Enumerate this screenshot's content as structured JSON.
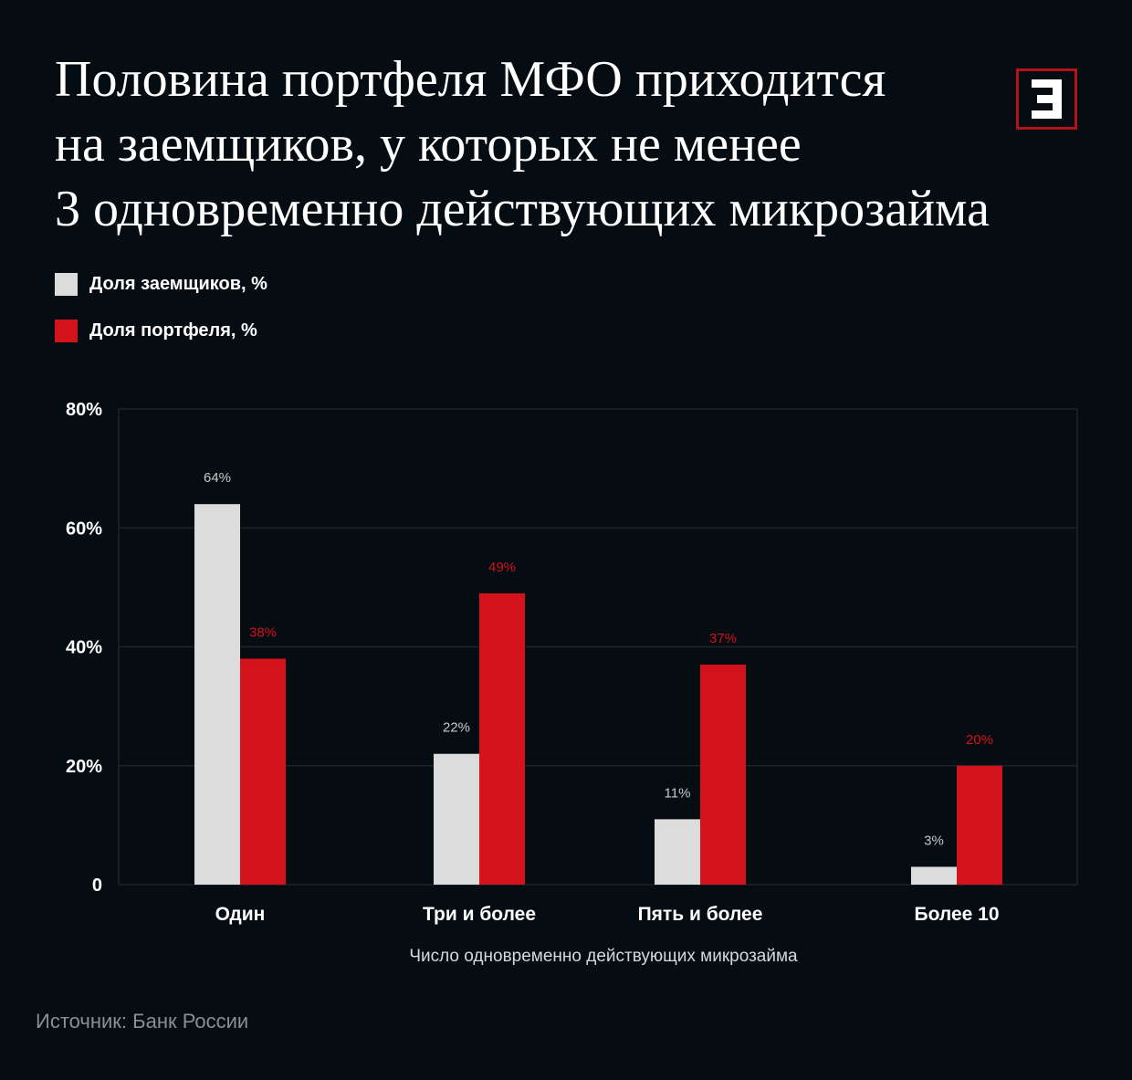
{
  "title_lines": [
    "Половина портфеля МФО приходится",
    "на заемщиков, у которых не менее",
    "3 одновременно действующих микрозайма"
  ],
  "logo": {
    "letter": "Э",
    "border_color": "#b3121b"
  },
  "colors": {
    "borrowers": "#dcdcdc",
    "portfolio": "#d4121b",
    "background": "#050c12",
    "grid": "#1c2329"
  },
  "source": "Источник: Банк России",
  "chart_data": {
    "type": "bar",
    "categories": [
      "Один",
      "Три и более",
      "Пять и более",
      "Более 10"
    ],
    "series": [
      {
        "name": "Доля заемщиков, %",
        "values": [
          64,
          22,
          11,
          3
        ],
        "labels": [
          "64%",
          "22%",
          "11%",
          "3%"
        ],
        "color": "#dcdcdc"
      },
      {
        "name": "Доля портфеля, %",
        "values": [
          38,
          49,
          37,
          20
        ],
        "labels": [
          "38%",
          "49%",
          "37%",
          "20%"
        ],
        "color": "#d4121b"
      }
    ],
    "ylim": [
      0,
      80
    ],
    "yticks": [
      0,
      20,
      40,
      60,
      80
    ],
    "ytick_labels": [
      "0",
      "20%",
      "40%",
      "60%",
      "80%"
    ],
    "xlabel": "Число одновременно действующих микрозайма",
    "ylabel": "",
    "legend_position": "top-left",
    "grid": true
  }
}
